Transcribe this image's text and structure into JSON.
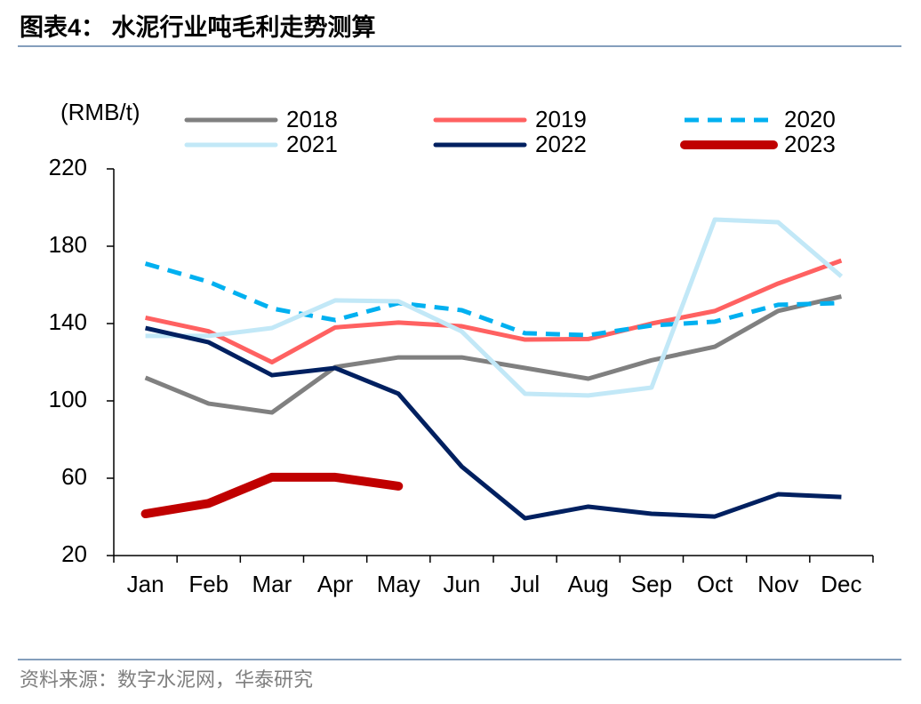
{
  "header": {
    "title": "图表4：  水泥行业吨毛利走势测算"
  },
  "chart_data": {
    "type": "line",
    "y_axis_label": "(RMB/t)",
    "categories": [
      "Jan",
      "Feb",
      "Mar",
      "Apr",
      "May",
      "Jun",
      "Jul",
      "Aug",
      "Sep",
      "Oct",
      "Nov",
      "Dec"
    ],
    "series": [
      {
        "name": "2018",
        "color": "#808080",
        "values": [
          112,
          98.6,
          94,
          117.5,
          122.5,
          122.5,
          117,
          111.5,
          121,
          128,
          146.5,
          154
        ]
      },
      {
        "name": "2019",
        "color": "#ff6161",
        "values": [
          143,
          136,
          120,
          138,
          140.5,
          138.6,
          131.7,
          132,
          140,
          146.5,
          160.7,
          172.6
        ]
      },
      {
        "name": "2020",
        "color": "#00b0f0",
        "line_style": "dashed",
        "values": [
          171,
          161.6,
          147.8,
          141.8,
          150.6,
          146.9,
          135,
          134,
          139,
          141,
          149.7,
          150.6
        ]
      },
      {
        "name": "2021",
        "color": "#c2e8f7",
        "values": [
          133.6,
          133.6,
          137.7,
          152,
          151.5,
          135.9,
          103.7,
          102.8,
          106.9,
          193.8,
          192.4,
          164.4
        ]
      },
      {
        "name": "2022",
        "color": "#002060",
        "values": [
          137.7,
          130.3,
          113.3,
          117,
          103.7,
          66,
          39.3,
          45.3,
          41.6,
          40.2,
          51.7,
          50.3
        ]
      },
      {
        "name": "2023",
        "color": "#c00000",
        "values": [
          41.6,
          47,
          60.5,
          60.5,
          55.9,
          null,
          null,
          null,
          null,
          null,
          null,
          null
        ]
      }
    ],
    "ylim": [
      20,
      220
    ],
    "yticks": [
      20,
      60,
      100,
      140,
      180,
      220
    ],
    "grid": false
  },
  "footer": {
    "source": "资料来源：数字水泥网，华泰研究"
  }
}
